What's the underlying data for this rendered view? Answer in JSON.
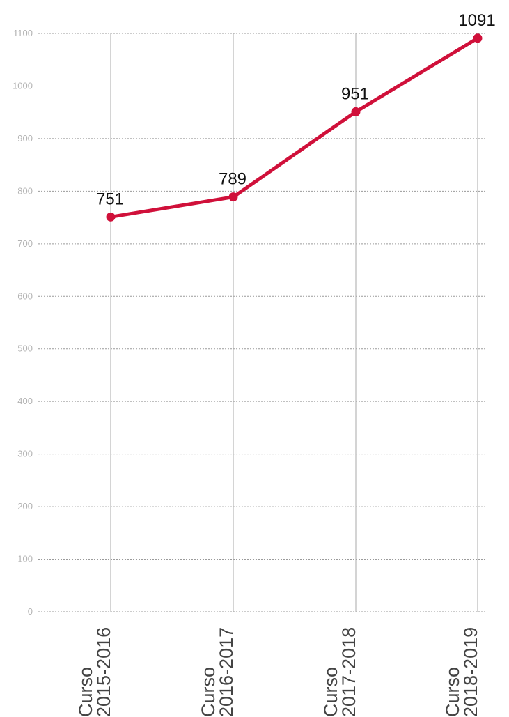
{
  "chart_data": {
    "type": "line",
    "title": "",
    "xlabel": "",
    "ylabel": "",
    "ylim": [
      0,
      1100
    ],
    "yticks": [
      0,
      100,
      200,
      300,
      400,
      500,
      600,
      700,
      800,
      900,
      1000,
      1100
    ],
    "grid": true,
    "legend": "none",
    "categories": [
      [
        "Curso",
        "2015-2016"
      ],
      [
        "Curso",
        "2016-2017"
      ],
      [
        "Curso",
        "2017-2018"
      ],
      [
        "Curso",
        "2018-2019"
      ]
    ],
    "series": [
      {
        "values": [
          751,
          789,
          951,
          1091
        ],
        "color": "#d0103a"
      }
    ],
    "data_labels": [
      "751",
      "789",
      "951",
      "1091"
    ]
  }
}
